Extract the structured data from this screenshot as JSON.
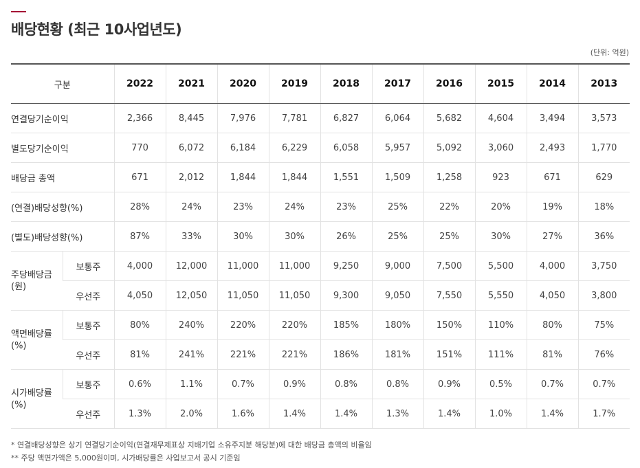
{
  "title": "배당현황 (최근 10사업년도)",
  "unit": "(단위: 억원)",
  "header": {
    "label": "구분",
    "years": [
      "2022",
      "2021",
      "2020",
      "2019",
      "2018",
      "2017",
      "2016",
      "2015",
      "2014",
      "2013"
    ]
  },
  "rows": [
    {
      "label": "연결당기순이익",
      "values": [
        "2,366",
        "8,445",
        "7,976",
        "7,781",
        "6,827",
        "6,064",
        "5,682",
        "4,604",
        "3,494",
        "3,573"
      ]
    },
    {
      "label": "별도당기순이익",
      "values": [
        "770",
        "6,072",
        "6,184",
        "6,229",
        "6,058",
        "5,957",
        "5,092",
        "3,060",
        "2,493",
        "1,770"
      ]
    },
    {
      "label": "배당금 총액",
      "values": [
        "671",
        "2,012",
        "1,844",
        "1,844",
        "1,551",
        "1,509",
        "1,258",
        "923",
        "671",
        "629"
      ]
    },
    {
      "label": "(연결)배당성향(%)",
      "values": [
        "28%",
        "24%",
        "23%",
        "24%",
        "23%",
        "25%",
        "22%",
        "20%",
        "19%",
        "18%"
      ]
    },
    {
      "label": "(별도)배당성향(%)",
      "values": [
        "87%",
        "33%",
        "30%",
        "30%",
        "26%",
        "25%",
        "25%",
        "30%",
        "27%",
        "36%"
      ]
    }
  ],
  "groups": [
    {
      "label_line1": "주당배당금",
      "label_line2": "(원)",
      "subrows": [
        {
          "label": "보통주",
          "values": [
            "4,000",
            "12,000",
            "11,000",
            "11,000",
            "9,250",
            "9,000",
            "7,500",
            "5,500",
            "4,000",
            "3,750"
          ]
        },
        {
          "label": "우선주",
          "values": [
            "4,050",
            "12,050",
            "11,050",
            "11,050",
            "9,300",
            "9,050",
            "7,550",
            "5,550",
            "4,050",
            "3,800"
          ]
        }
      ]
    },
    {
      "label_line1": "액면배당률",
      "label_line2": "(%)",
      "subrows": [
        {
          "label": "보통주",
          "values": [
            "80%",
            "240%",
            "220%",
            "220%",
            "185%",
            "180%",
            "150%",
            "110%",
            "80%",
            "75%"
          ]
        },
        {
          "label": "우선주",
          "values": [
            "81%",
            "241%",
            "221%",
            "221%",
            "186%",
            "181%",
            "151%",
            "111%",
            "81%",
            "76%"
          ]
        }
      ]
    },
    {
      "label_line1": "시가배당률",
      "label_line2": "(%)",
      "subrows": [
        {
          "label": "보통주",
          "values": [
            "0.6%",
            "1.1%",
            "0.7%",
            "0.9%",
            "0.8%",
            "0.8%",
            "0.9%",
            "0.5%",
            "0.7%",
            "0.7%"
          ]
        },
        {
          "label": "우선주",
          "values": [
            "1.3%",
            "2.0%",
            "1.6%",
            "1.4%",
            "1.4%",
            "1.3%",
            "1.4%",
            "1.0%",
            "1.4%",
            "1.7%"
          ]
        }
      ]
    }
  ],
  "notes": [
    "* 연결배당성향은 상기 연결당기순이익(연결재무제표상 지배기업 소유주지분 해당분)에 대한 배당금 총액의 비율임",
    "** 주당 액면가액은 5,000원이며, 시가배당률은 사업보고서 공시 기준임"
  ],
  "colors": {
    "accent": "#a50034",
    "text": "#333333",
    "rule": "#e2e2e2"
  }
}
